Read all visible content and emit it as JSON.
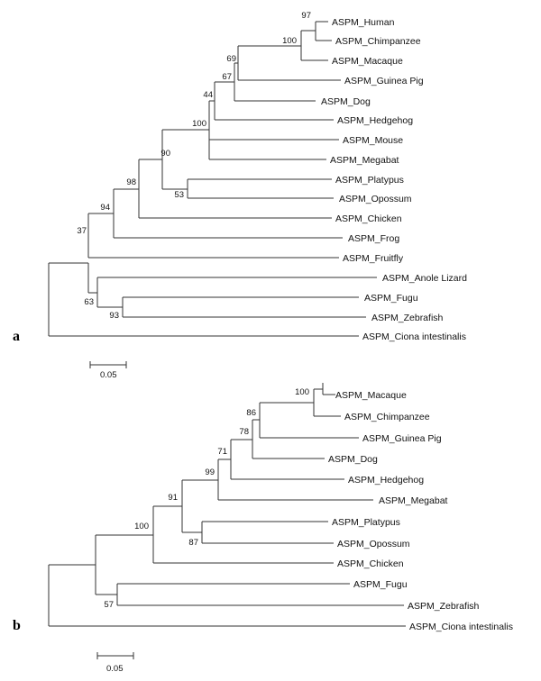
{
  "panel_a": {
    "label": "a",
    "scale_bar": "0.05",
    "leaves": [
      "ASPM_Human",
      "ASPM_Chimpanzee",
      "ASPM_Macaque",
      "ASPM_Guinea Pig",
      "ASPM_Dog",
      "ASPM_Hedgehog",
      "ASPM_Mouse",
      "ASPM_Megabat",
      "ASPM_Platypus",
      "ASPM_Opossum",
      "ASPM_Chicken",
      "ASPM_Frog",
      "ASPM_Fruitfly",
      "ASPM_Anole Lizard",
      "ASPM_Fugu",
      "ASPM_Zebrafish",
      "ASPM_Ciona intestinalis"
    ],
    "bootstrap": [
      "97",
      "100",
      "69",
      "67",
      "44",
      "100",
      "90",
      "53",
      "98",
      "94",
      "37",
      "63",
      "93"
    ]
  },
  "panel_b": {
    "label": "b",
    "scale_bar": "0.05",
    "leaves": [
      "ASPM_Macaque",
      "ASPM_Chimpanzee",
      "ASPM_Guinea Pig",
      "ASPM_Dog",
      "ASPM_Hedgehog",
      "ASPM_Megabat",
      "ASPM_Platypus",
      "ASPM_Opossum",
      "ASPM_Chicken",
      "ASPM_Fugu",
      "ASPM_Zebrafish",
      "ASPM_Ciona intestinalis"
    ],
    "bootstrap": [
      "100",
      "86",
      "78",
      "71",
      "99",
      "91",
      "100",
      "87",
      "57"
    ]
  }
}
